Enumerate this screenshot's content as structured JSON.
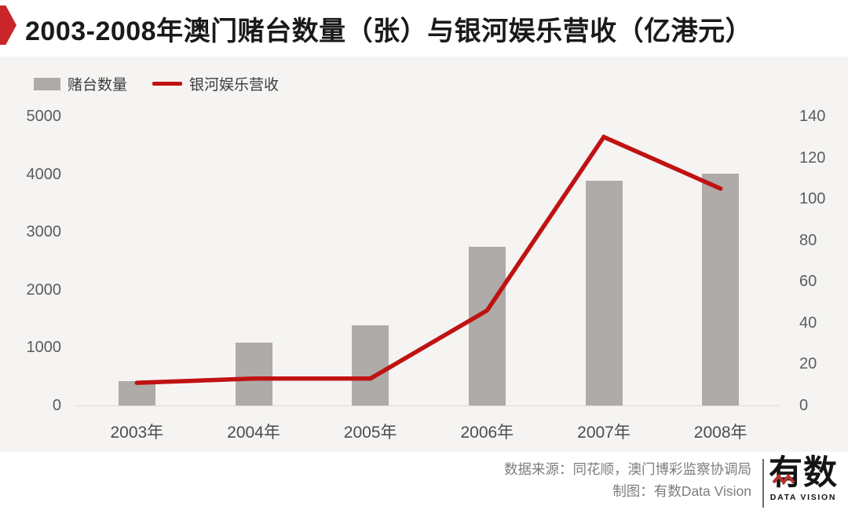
{
  "title": {
    "text": "2003-2008年澳门赌台数量（张）与银河娱乐营收（亿港元）"
  },
  "colors": {
    "badge_red": "#c9252b",
    "bar_gray": "#aeaba8",
    "line_red": "#c01212"
  },
  "chart_data": {
    "type": "bar",
    "title": "2003-2008年澳门赌台数量（张）与银河娱乐营收（亿港元）",
    "categories": [
      "2003年",
      "2004年",
      "2005年",
      "2006年",
      "2007年",
      "2008年"
    ],
    "series": [
      {
        "name": "赌台数量",
        "type": "bar",
        "axis": "left",
        "values": [
          420,
          1090,
          1390,
          2750,
          3890,
          4010
        ]
      },
      {
        "name": "银河娱乐营收",
        "type": "line",
        "axis": "right",
        "values": [
          11,
          13,
          13,
          46,
          130,
          105
        ]
      }
    ],
    "left_axis": {
      "min": 0,
      "max": 5000,
      "ticks": [
        5000,
        4000,
        3000,
        2000,
        1000,
        0
      ]
    },
    "right_axis": {
      "min": 0,
      "max": 140,
      "ticks": [
        140,
        120,
        100,
        80,
        60,
        40,
        20,
        0
      ]
    },
    "grid": false,
    "legend_position": "top-left"
  },
  "footer": {
    "source": "数据来源：同花顺，澳门博彩监察协调局",
    "credit": "制图：有数Data Vision",
    "logo_cn": "有数",
    "logo_en": "DATA VISION"
  }
}
